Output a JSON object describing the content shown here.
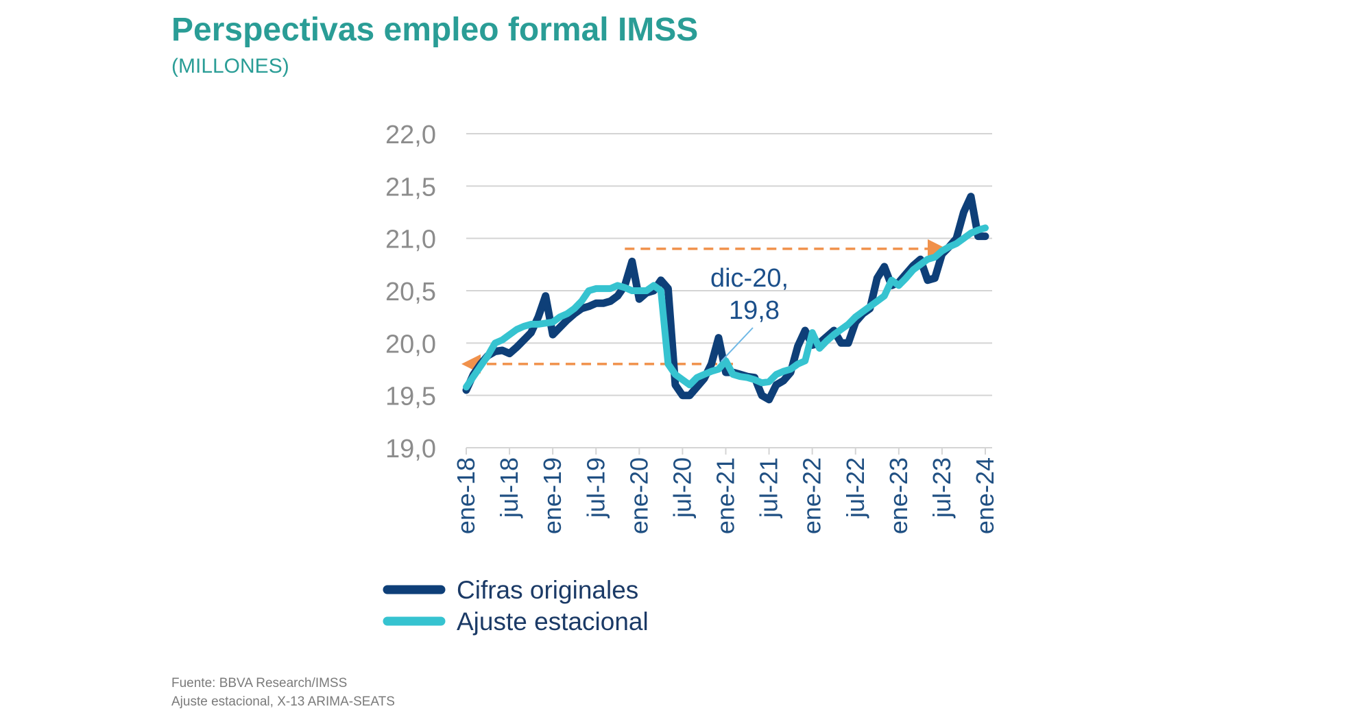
{
  "header": {
    "title": "Perspectivas empleo formal IMSS",
    "subtitle": "(MILLONES)"
  },
  "source": {
    "line1": "Fuente: BBVA Research/IMSS",
    "line2": "Ajuste estacional, X-13 ARIMA-SEATS"
  },
  "chart_data": {
    "type": "line",
    "y_ticks": [
      "22,0",
      "21,5",
      "21,0",
      "20,5",
      "20,0",
      "19,5",
      "19,0"
    ],
    "ylim": [
      19.0,
      22.0
    ],
    "grid": true,
    "x_ticks": [
      "ene-18",
      "jul-18",
      "ene-19",
      "jul-19",
      "ene-20",
      "jul-20",
      "ene-21",
      "jul-21",
      "ene-22",
      "jul-22",
      "ene-23",
      "jul-23",
      "ene-24"
    ],
    "x_tick_index": [
      0,
      6,
      12,
      18,
      24,
      30,
      36,
      42,
      48,
      54,
      60,
      66,
      72
    ],
    "months_count": 73,
    "legend_position": "bottom-left",
    "colors": {
      "original": "#0e3f78",
      "adjusted": "#36c3d0",
      "arrow": "#f0914b",
      "grid": "#d4d4d4",
      "tick_text": "#8c8c8c",
      "annotation": "#1b4f8a"
    },
    "series": [
      {
        "name": "Cifras originales",
        "values": [
          19.55,
          19.7,
          19.8,
          19.88,
          19.92,
          19.93,
          19.9,
          19.96,
          20.03,
          20.1,
          20.25,
          20.45,
          20.08,
          20.15,
          20.22,
          20.28,
          20.33,
          20.35,
          20.38,
          20.38,
          20.4,
          20.45,
          20.55,
          20.78,
          20.42,
          20.48,
          20.5,
          20.6,
          20.52,
          19.6,
          19.5,
          19.5,
          19.58,
          19.66,
          19.8,
          20.05,
          19.72,
          19.72,
          19.7,
          19.68,
          19.67,
          19.5,
          19.46,
          19.6,
          19.64,
          19.72,
          19.97,
          20.12,
          19.98,
          20.0,
          20.06,
          20.12,
          20.0,
          20.0,
          20.2,
          20.28,
          20.33,
          20.62,
          20.73,
          20.55,
          20.58,
          20.66,
          20.74,
          20.8,
          20.6,
          20.62,
          20.85,
          20.92,
          21.0,
          21.25,
          21.4,
          21.02,
          21.02
        ]
      },
      {
        "name": "Ajuste estacional",
        "values": [
          19.58,
          19.68,
          19.78,
          19.88,
          20.0,
          20.03,
          20.08,
          20.13,
          20.16,
          20.18,
          20.18,
          20.19,
          20.2,
          20.25,
          20.28,
          20.33,
          20.4,
          20.5,
          20.52,
          20.52,
          20.52,
          20.55,
          20.53,
          20.5,
          20.5,
          20.5,
          20.55,
          20.5,
          19.8,
          19.7,
          19.65,
          19.6,
          19.67,
          19.7,
          19.73,
          19.75,
          19.83,
          19.7,
          19.68,
          19.67,
          19.65,
          19.62,
          19.63,
          19.7,
          19.73,
          19.75,
          19.8,
          19.83,
          20.1,
          19.95,
          20.02,
          20.08,
          20.13,
          20.18,
          20.25,
          20.3,
          20.35,
          20.4,
          20.45,
          20.6,
          20.55,
          20.62,
          20.7,
          20.75,
          20.8,
          20.82,
          20.88,
          20.92,
          20.95,
          21.0,
          21.05,
          21.08,
          21.1
        ]
      }
    ],
    "annotation": {
      "line1": "dic-20,",
      "line2": "19,8",
      "month_index": 35,
      "value": 19.8
    },
    "reference_arrows": [
      {
        "value": 19.8,
        "from_index": 37,
        "to_index": 0,
        "direction": "left"
      },
      {
        "value": 20.9,
        "from_index": 22,
        "to_index": 66,
        "direction": "right"
      }
    ]
  }
}
